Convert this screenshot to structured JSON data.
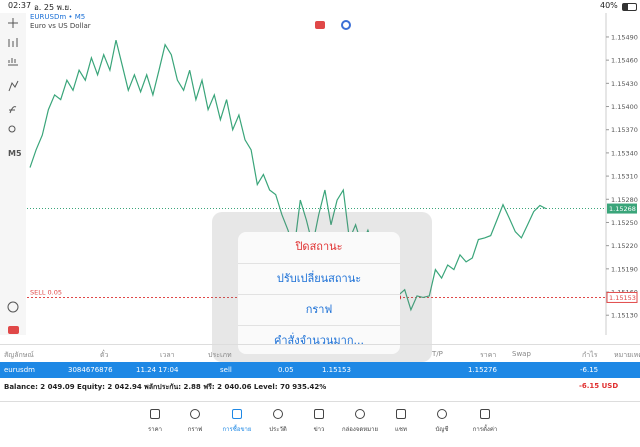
{
  "status_bar": {
    "time": "02:37",
    "date": "อ. 25 พ.ย.",
    "battery": "40%"
  },
  "chart": {
    "type": "line",
    "symbol": "EURUSDm • M5",
    "description": "Euro vs US Dollar",
    "timeframe": "M5",
    "color": "#3aa57a",
    "ylim": [
      1.15107,
      1.15521
    ],
    "yticks": [
      {
        "value": 1.1549,
        "label": "1.15490"
      },
      {
        "value": 1.1546,
        "label": "1.15460"
      },
      {
        "value": 1.1543,
        "label": "1.15430"
      },
      {
        "value": 1.154,
        "label": "1.15400"
      },
      {
        "value": 1.1537,
        "label": "1.15370"
      },
      {
        "value": 1.1534,
        "label": "1.15340"
      },
      {
        "value": 1.1531,
        "label": "1.15310"
      },
      {
        "value": 1.1528,
        "label": "1.15280"
      },
      {
        "value": 1.1525,
        "label": "1.15250"
      },
      {
        "value": 1.1522,
        "label": "1.15220"
      },
      {
        "value": 1.1519,
        "label": "1.15190"
      },
      {
        "value": 1.1516,
        "label": "1.15160"
      },
      {
        "value": 1.1513,
        "label": "1.15130"
      }
    ],
    "x_labels": [
      "24 Nov 09:35",
      "24 Nov 10:35",
      "24 Nov 11:35",
      "24 Nov 12:35",
      "24 Nov 16:35",
      "24 Nov 17:35",
      "24 Nov 18:35",
      "24 Nov 19:35",
      "24 Nov 20:35"
    ],
    "values": [
      1.15321,
      1.15344,
      1.15363,
      1.15396,
      1.15415,
      1.15409,
      1.15434,
      1.15421,
      1.15447,
      1.15434,
      1.15463,
      1.15441,
      1.15467,
      1.15447,
      1.15486,
      1.15454,
      1.15421,
      1.15441,
      1.15419,
      1.15441,
      1.15415,
      1.15447,
      1.1548,
      1.15467,
      1.15434,
      1.15421,
      1.15447,
      1.15409,
      1.15434,
      1.15396,
      1.15415,
      1.15383,
      1.15409,
      1.1537,
      1.15389,
      1.15357,
      1.15344,
      1.15299,
      1.15312,
      1.15292,
      1.15286,
      1.1526,
      1.1524,
      1.15215,
      1.15279,
      1.15253,
      1.15221,
      1.1526,
      1.15292,
      1.15247,
      1.15279,
      1.15292,
      1.15228,
      1.15247,
      1.15221,
      1.1524,
      1.15215,
      1.15234,
      1.15202,
      1.15215,
      1.15156,
      1.15163,
      1.15137,
      1.15155,
      1.15153,
      1.15155,
      1.15189,
      1.15178,
      1.15195,
      1.15189,
      1.15208,
      1.15199,
      1.15204,
      1.15228,
      1.1523,
      1.15233,
      1.15253,
      1.15273,
      1.15256,
      1.15238,
      1.1523,
      1.15247,
      1.15264,
      1.15272,
      1.15268
    ],
    "current_price": 1.15268,
    "order_label": "SELL 0.05",
    "order_price": 1.15153
  },
  "popup_menu": {
    "items": [
      "ปิดสถานะ",
      "ปรับเปลี่ยนสถานะ",
      "กราฟ",
      "คำสั่งจำนวนมาก..."
    ]
  },
  "table": {
    "headers": [
      "สัญลักษณ์",
      "ตั๋ว",
      "เวลา",
      "ประเภท",
      "T/P",
      "ราคา",
      "Swap",
      "กำไร",
      "หมายเหตุ"
    ],
    "row": [
      "eurusdm",
      "3084676876",
      "11.24 17:04",
      "sell",
      "0.05",
      "1.15153",
      "1.15276",
      "-6.15"
    ],
    "balance": "Balance: 2 049.09 Equity: 2 042.94 พลักประกัน: 2.88 ฟรี: 2 040.06 Level: 70 935.42%",
    "total": "-6.15 USD"
  },
  "nav": {
    "items": [
      "ราคา",
      "กราฟ",
      "การซื้อขาย",
      "ประวัติ",
      "ข่าว",
      "กล่องจดหมาย",
      "แชท",
      "บัญชี",
      "การตั้งค่า"
    ]
  }
}
